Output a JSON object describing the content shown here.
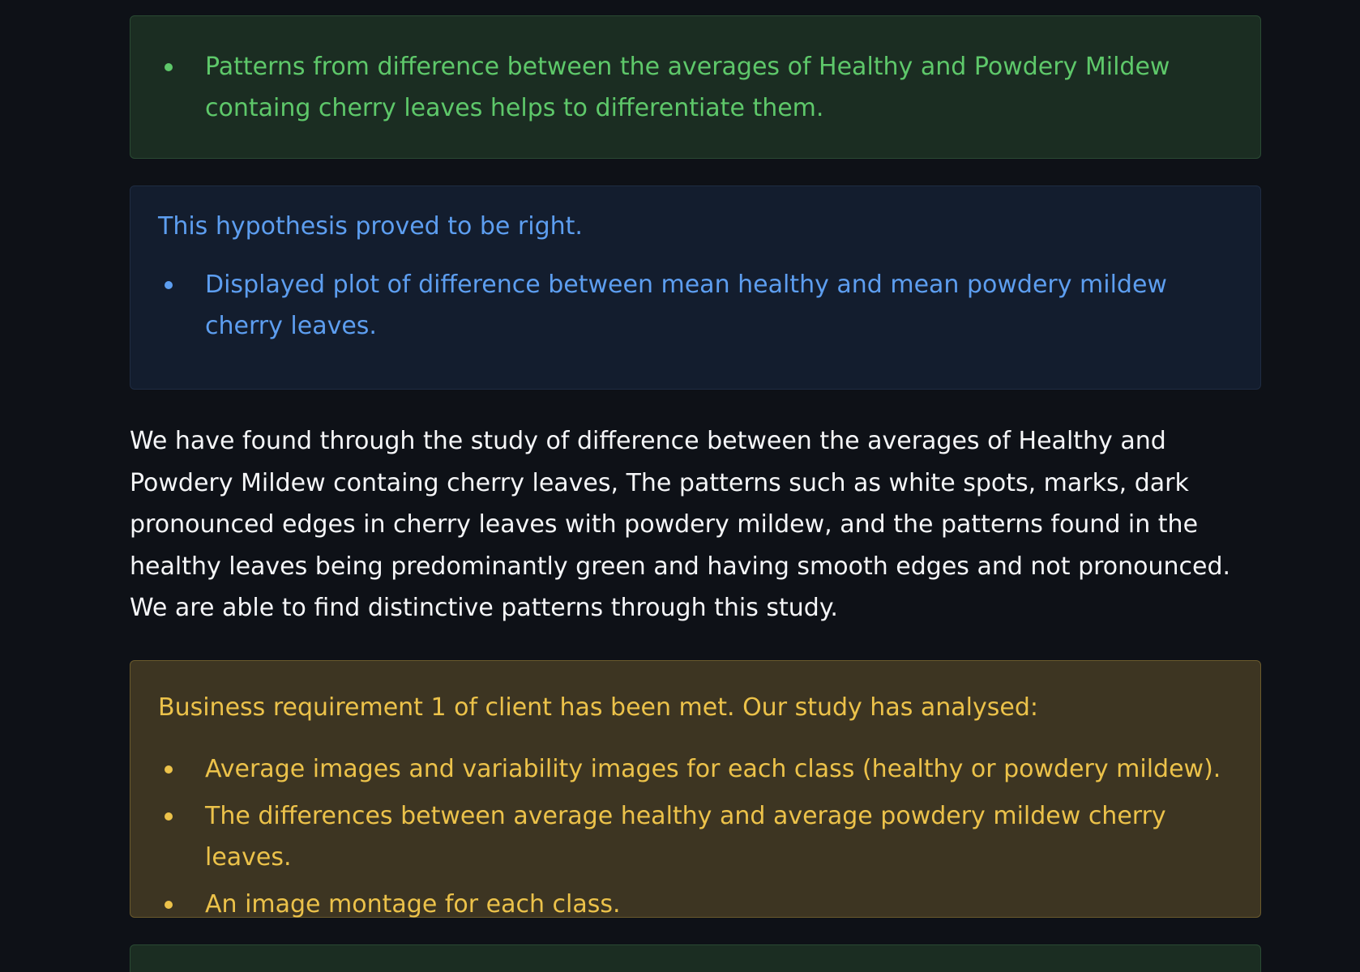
{
  "callouts": {
    "success_1": {
      "bullets": [
        "Patterns from difference between the averages of Healthy and Powdery Mildew containg cherry leaves helps to differentiate them."
      ]
    },
    "info_1": {
      "text": "This hypothesis proved to be right.",
      "bullets": [
        "Displayed plot of difference between mean healthy and mean powdery mildew cherry leaves."
      ]
    },
    "warning_1": {
      "text": "Business requirement 1 of client has been met. Our study has analysed:",
      "bullets": [
        "Average images and variability images for each class (healthy or powdery mildew).",
        "The differences between average healthy and average powdery mildew cherry leaves.",
        "An image montage for each class."
      ]
    }
  },
  "paragraph": "We have found through the study of difference between the averages of Healthy and Powdery Mildew containg cherry leaves, The patterns such as white spots, marks, dark pronounced edges in cherry leaves with powdery mildew, and the patterns found in the healthy leaves being predominantly green and having smooth edges and not pronounced. We are able to find distinctive patterns through this study.",
  "colors": {
    "background": "#0e1117",
    "success_text": "#5ec86a",
    "info_text": "#5d9ef0",
    "warning_text": "#ecc24a",
    "body_text": "#f5f6f8"
  }
}
